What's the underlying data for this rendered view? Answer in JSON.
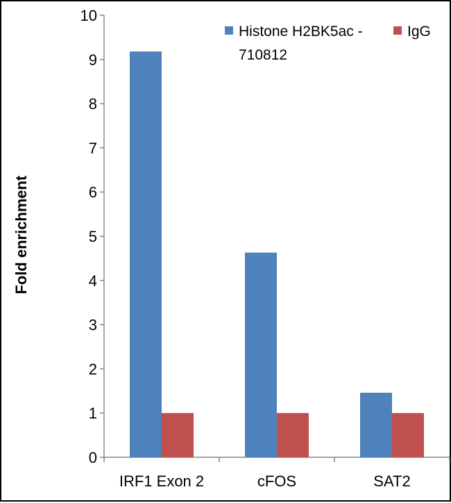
{
  "chart_data": {
    "type": "bar",
    "title": "",
    "xlabel": "",
    "ylabel": "Fold enrichment",
    "ylim": [
      0,
      10
    ],
    "yticks": [
      "0",
      "1",
      "2",
      "3",
      "4",
      "5",
      "6",
      "7",
      "8",
      "9",
      "10"
    ],
    "categories": [
      "IRF1 Exon 2",
      "cFOS",
      "SAT2"
    ],
    "series": [
      {
        "name": "Histone H2BK5ac - 710812",
        "color": "#4F81BD",
        "values": [
          9.18,
          4.63,
          1.46
        ]
      },
      {
        "name": "IgG",
        "color": "#C0504D",
        "values": [
          1.0,
          1.0,
          1.0
        ]
      }
    ],
    "legend": {
      "placement": "top-right",
      "entry_lines": [
        [
          "Histone H2BK5ac -",
          "710812"
        ],
        [
          "IgG"
        ]
      ]
    },
    "grid": false
  }
}
